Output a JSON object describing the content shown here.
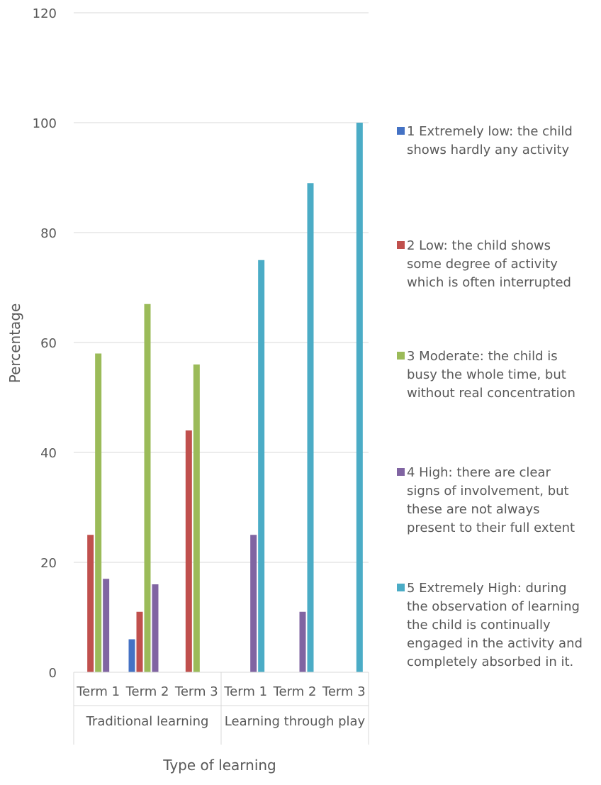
{
  "chart_data": {
    "type": "bar",
    "title": "",
    "xlabel": "Type of learning",
    "ylabel": "Percentage",
    "ylim": [
      0,
      120
    ],
    "yticks": [
      0,
      20,
      40,
      60,
      80,
      100,
      120
    ],
    "grid": true,
    "legend_position": "right",
    "groups": [
      {
        "label": "Traditional learning",
        "categories": [
          "Term 1",
          "Term 2",
          "Term 3"
        ]
      },
      {
        "label": "Learning through play",
        "categories": [
          "Term 1",
          "Term 2",
          "Term 3"
        ]
      }
    ],
    "categories": [
      "Term 1",
      "Term 2",
      "Term 3",
      "Term 1",
      "Term 2",
      "Term 3"
    ],
    "series": [
      {
        "name": "1 Extremely low: the child shows hardly any activity",
        "color": "#4472C4",
        "values": [
          0,
          6,
          0,
          0,
          0,
          0
        ]
      },
      {
        "name": "2 Low: the child shows some degree of activity which is often interrupted",
        "color": "#C0504D",
        "values": [
          25,
          11,
          44,
          0,
          0,
          0
        ]
      },
      {
        "name": "3 Moderate: the child is busy the whole time, but without real concentration",
        "color": "#9BBB59",
        "values": [
          58,
          67,
          56,
          0,
          0,
          0
        ]
      },
      {
        "name": "4 High: there are clear signs of involvement, but these are not always present to their full extent",
        "color": "#8064A2",
        "values": [
          17,
          16,
          0,
          25,
          11,
          0
        ]
      },
      {
        "name": "5 Extremely High: during the observation of learning the child is continually engaged in the activity and completely absorbed in it.",
        "color": "#4BACC6",
        "values": [
          0,
          0,
          0,
          75,
          89,
          100
        ]
      }
    ]
  },
  "legend": {
    "items": [
      {
        "lines": [
          "1 Extremely low: the child",
          "shows hardly any activity"
        ],
        "color": "#4472C4"
      },
      {
        "lines": [
          "2 Low: the child shows",
          "some degree of activity",
          "which is often interrupted"
        ],
        "color": "#C0504D"
      },
      {
        "lines": [
          "3 Moderate: the child is",
          "busy the whole time, but",
          "without real concentration"
        ],
        "color": "#9BBB59"
      },
      {
        "lines": [
          "4 High: there are clear",
          "signs of involvement, but",
          "these are not always",
          "present to their full extent"
        ],
        "color": "#8064A2"
      },
      {
        "lines": [
          "5 Extremely High: during",
          "the observation of learning",
          "the child is continually",
          "engaged in the activity and",
          "completely absorbed in it."
        ],
        "color": "#4BACC6"
      }
    ]
  }
}
